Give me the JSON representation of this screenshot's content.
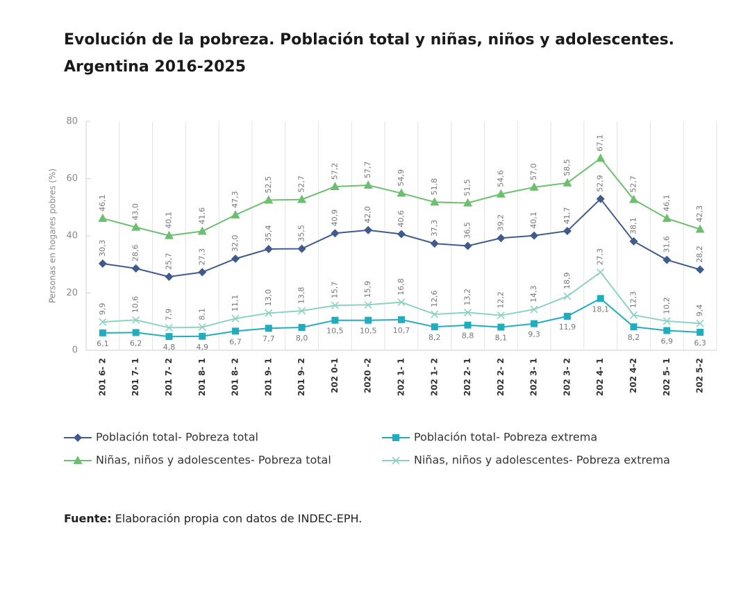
{
  "chart_data": {
    "type": "line",
    "title_lines": [
      "Evolución de la pobreza. Población total y niñas, niños y adolescentes.",
      "Argentina 2016-2025"
    ],
    "y_label": "Personas en hogares pobres (%)",
    "categories": [
      "201 6- 2",
      "201 7- 1",
      "201 7- 2",
      "201 8- 1",
      "201 8- 2",
      "201 9- 1",
      "201 9- 2",
      "202 0-1",
      "2020 -2",
      "202 1- 1",
      "202 1- 2",
      "202 2- 1",
      "202 2- 2",
      "202 3- 1",
      "202 3- 2",
      "202 4- 1",
      "202 4-2",
      "202 5- 1",
      "202 5-2"
    ],
    "ylim": [
      0,
      80
    ],
    "yticks": [
      0,
      20,
      40,
      60,
      80
    ],
    "grid": true,
    "series": [
      {
        "name": "Población total- Pobreza total",
        "color": "#3e5b8c",
        "marker": "diamond",
        "values": [
          30.3,
          28.6,
          25.7,
          27.3,
          32.0,
          35.4,
          35.5,
          40.9,
          42.0,
          40.6,
          37.3,
          36.5,
          39.2,
          40.1,
          41.7,
          52.9,
          38.1,
          31.6,
          28.2
        ],
        "value_labels": [
          "30,3",
          "28,6",
          "25,7",
          "27,3",
          "32,0",
          "35,4",
          "35,5",
          "40,9",
          "42,0",
          "40,6",
          "37,3",
          "36,5",
          "39,2",
          "40,1",
          "41,7",
          "52,9",
          "38,1",
          "31,6",
          "28,2"
        ]
      },
      {
        "name": "Población total- Pobreza extrema",
        "color": "#20adc0",
        "marker": "square",
        "values": [
          6.1,
          6.2,
          4.8,
          4.9,
          6.7,
          7.7,
          8.0,
          10.5,
          10.5,
          10.7,
          8.2,
          8.8,
          8.1,
          9.3,
          11.9,
          18.1,
          8.2,
          6.9,
          6.3
        ],
        "value_labels": [
          "6,1",
          "6,2",
          "4,8",
          "4,9",
          "6,7",
          "7,7",
          "8,0",
          "10,5",
          "10,5",
          "10,7",
          "8,2",
          "8,8",
          "8,1",
          "9,3",
          "11,9",
          "18,1",
          "8,2",
          "6,9",
          "6,3"
        ]
      },
      {
        "name": "Niñas, niños y adolescentes- Pobreza total",
        "color": "#6cbf6f",
        "marker": "triangle",
        "values": [
          46.1,
          43.0,
          40.1,
          41.6,
          47.3,
          52.5,
          52.7,
          57.2,
          57.7,
          54.9,
          51.8,
          51.5,
          54.6,
          57.0,
          58.5,
          67.1,
          52.7,
          46.1,
          42.3
        ],
        "value_labels": [
          "46,1",
          "43,0",
          "40,1",
          "41,6",
          "47,3",
          "52,5",
          "52,7",
          "57,2",
          "57,7",
          "54,9",
          "51,8",
          "51,5",
          "54,6",
          "57,0",
          "58,5",
          "67,1",
          "52,7",
          "46,1",
          "42,3"
        ]
      },
      {
        "name": "Niñas, niños y adolescentes- Pobreza extrema",
        "color": "#8dd2c2",
        "marker": "x",
        "values": [
          9.9,
          10.6,
          7.9,
          8.1,
          11.1,
          13.0,
          13.8,
          15.7,
          15.9,
          16.8,
          12.6,
          13.2,
          12.2,
          14.3,
          18.9,
          27.3,
          12.3,
          10.2,
          9.4
        ],
        "value_labels": [
          "9,9",
          "10,6",
          "7,9",
          "8,1",
          "11,1",
          "13,0",
          "13,8",
          "15,7",
          "15,9",
          "16,8",
          "12,6",
          "13,2",
          "12,2",
          "14,3",
          "18,9",
          "27,3",
          "12,3",
          "10,2",
          "9,4"
        ]
      }
    ],
    "source_label": "Fuente:",
    "source_text": "Elaboración propia con datos de INDEC-EPH."
  }
}
